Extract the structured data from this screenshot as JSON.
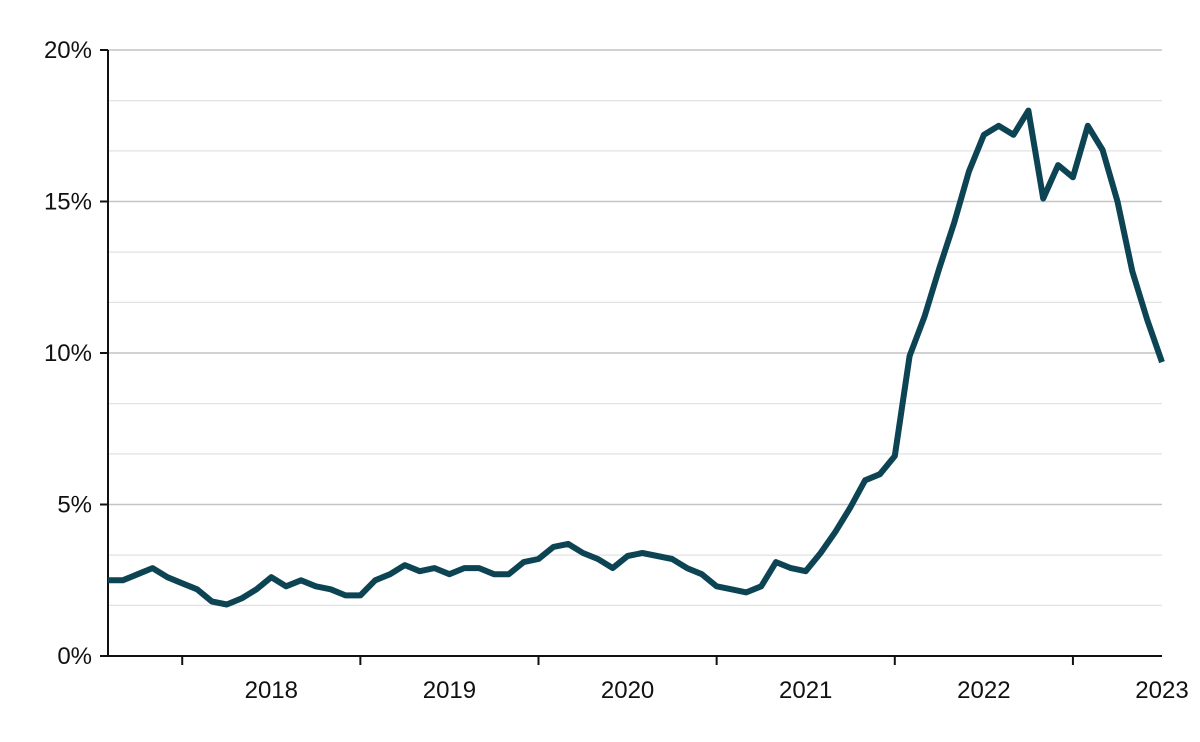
{
  "chart_data": {
    "type": "line",
    "title": "",
    "xlabel": "",
    "ylabel": "",
    "y_unit": "%",
    "ylim": [
      0,
      20
    ],
    "y_major_ticks": [
      0,
      5,
      10,
      15,
      20
    ],
    "y_tick_labels": [
      "0%",
      "5%",
      "10%",
      "15%",
      "20%"
    ],
    "y_minor_gridlines": [
      1.67,
      3.33,
      6.67,
      8.33,
      11.67,
      13.33,
      16.67,
      18.33
    ],
    "xlim": [
      "2017-08",
      "2023-07"
    ],
    "x_tick_labels": [
      "2018",
      "2019",
      "2020",
      "2021",
      "2022",
      "2023"
    ],
    "grid": true,
    "legend": "none",
    "colors": {
      "series": "#0d4454",
      "axis": "#111111",
      "grid_major": "#c4c4c4",
      "grid_minor": "#e2e2e2"
    },
    "series": [
      {
        "x": [
          "2017-08",
          "2017-09",
          "2017-10",
          "2017-11",
          "2017-12",
          "2018-01",
          "2018-02",
          "2018-03",
          "2018-04",
          "2018-05",
          "2018-06",
          "2018-07",
          "2018-08",
          "2018-09",
          "2018-10",
          "2018-11",
          "2018-12",
          "2019-01",
          "2019-02",
          "2019-03",
          "2019-04",
          "2019-05",
          "2019-06",
          "2019-07",
          "2019-08",
          "2019-09",
          "2019-10",
          "2019-11",
          "2019-12",
          "2020-01",
          "2020-02",
          "2020-03",
          "2020-04",
          "2020-05",
          "2020-06",
          "2020-07",
          "2020-08",
          "2020-09",
          "2020-10",
          "2020-11",
          "2020-12",
          "2021-01",
          "2021-02",
          "2021-03",
          "2021-04",
          "2021-05",
          "2021-06",
          "2021-07",
          "2021-08",
          "2021-09",
          "2021-10",
          "2021-11",
          "2021-12",
          "2022-01",
          "2022-02",
          "2022-03",
          "2022-04",
          "2022-05",
          "2022-06",
          "2022-07",
          "2022-08",
          "2022-09",
          "2022-10",
          "2022-11",
          "2022-12",
          "2023-01",
          "2023-02",
          "2023-03",
          "2023-04",
          "2023-05",
          "2023-06",
          "2023-07"
        ],
        "values": [
          2.5,
          2.5,
          2.7,
          2.9,
          2.6,
          2.4,
          2.2,
          1.8,
          1.7,
          1.9,
          2.2,
          2.6,
          2.3,
          2.5,
          2.3,
          2.2,
          2.0,
          2.0,
          2.5,
          2.7,
          3.0,
          2.8,
          2.9,
          2.7,
          2.9,
          2.9,
          2.7,
          2.7,
          3.1,
          3.2,
          3.6,
          3.7,
          3.4,
          3.2,
          2.9,
          3.3,
          3.4,
          3.3,
          3.2,
          2.9,
          2.7,
          2.3,
          2.2,
          2.1,
          2.3,
          3.1,
          2.9,
          2.8,
          3.4,
          4.1,
          4.9,
          5.8,
          6.0,
          6.6,
          9.9,
          11.2,
          12.8,
          14.3,
          16.0,
          17.2,
          17.5,
          17.2,
          18.0,
          15.1,
          16.2,
          15.8,
          17.5,
          16.7,
          15.0,
          12.7,
          11.1,
          9.7
        ]
      }
    ]
  }
}
